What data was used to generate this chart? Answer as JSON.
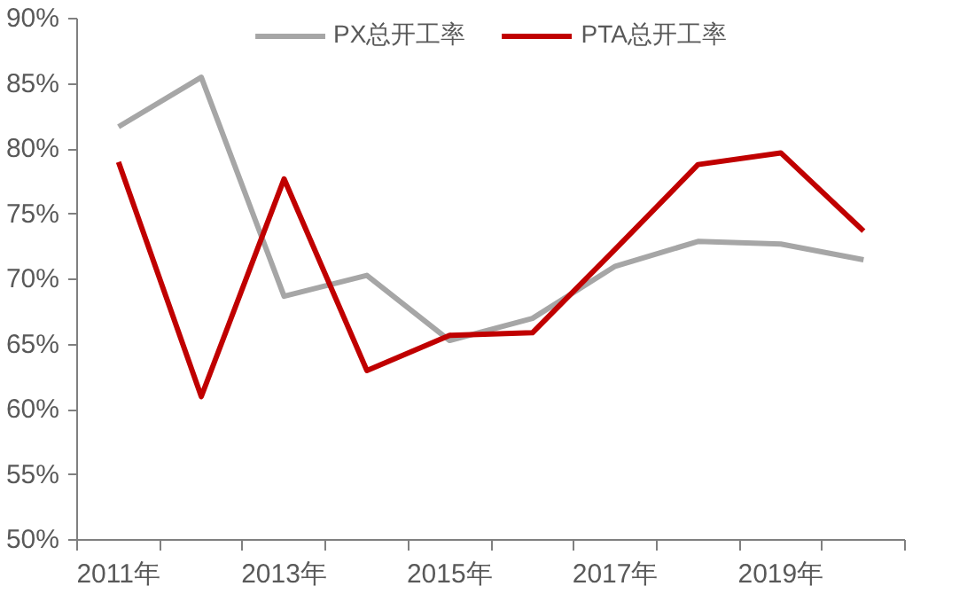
{
  "chart_data": {
    "type": "line",
    "categories": [
      "2011年",
      null,
      "2013年",
      null,
      "2015年",
      null,
      "2017年",
      null,
      "2019年",
      null
    ],
    "series": [
      {
        "name": "PX总开工率",
        "color": "#a6a6a6",
        "values": [
          81.7,
          85.5,
          68.7,
          70.3,
          65.3,
          67.0,
          71.0,
          72.9,
          72.7,
          71.5
        ]
      },
      {
        "name": "PTA总开工率",
        "color": "#c00000",
        "values": [
          79.0,
          61.0,
          77.7,
          63.0,
          65.7,
          65.9,
          72.3,
          78.8,
          79.7,
          73.7
        ]
      }
    ],
    "ylim": [
      50,
      90
    ],
    "yticks": [
      {
        "value": 50,
        "label": "50%"
      },
      {
        "value": 55,
        "label": "55%"
      },
      {
        "value": 60,
        "label": "60%"
      },
      {
        "value": 65,
        "label": "65%"
      },
      {
        "value": 70,
        "label": "70%"
      },
      {
        "value": 75,
        "label": "75%"
      },
      {
        "value": 80,
        "label": "80%"
      },
      {
        "value": 85,
        "label": "85%"
      },
      {
        "value": 90,
        "label": "90%"
      }
    ],
    "grid": false,
    "legend": "top",
    "marker": "none",
    "line_style": "solid"
  }
}
